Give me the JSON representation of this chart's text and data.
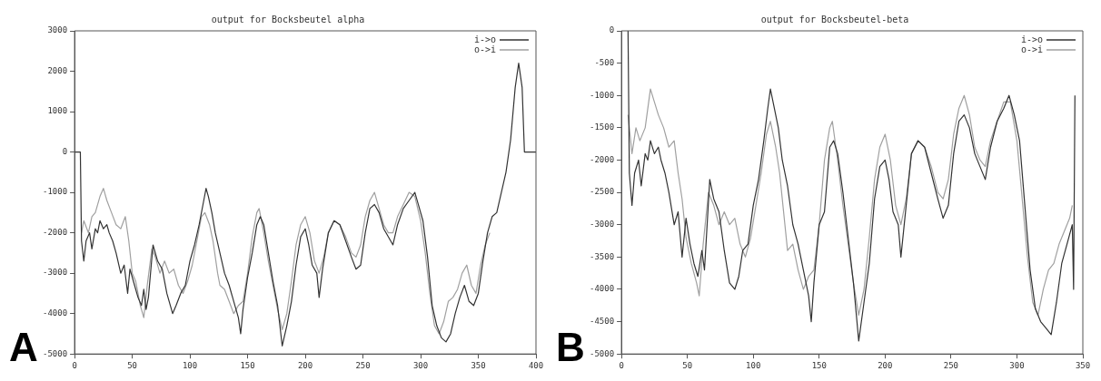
{
  "chart_data": [
    {
      "type": "line",
      "title": "output for Bocksbeutel alpha",
      "annotations": [
        "A"
      ],
      "xlim": [
        0,
        400
      ],
      "xticks": [
        0,
        50,
        100,
        150,
        200,
        250,
        300,
        350,
        400
      ],
      "ylim": [
        -5000,
        3000
      ],
      "yticks": [
        -5000,
        -4000,
        -3000,
        -2000,
        -1000,
        0,
        1000,
        2000,
        3000
      ],
      "grid": false,
      "legend": "top right",
      "marker": "none",
      "line_style": "solid",
      "series": [
        {
          "name": "i->o",
          "color": "#333333",
          "x": [
            0,
            5,
            6,
            8,
            10,
            13,
            15,
            18,
            20,
            22,
            25,
            28,
            30,
            33,
            36,
            40,
            43,
            46,
            48,
            52,
            55,
            58,
            60,
            62,
            64,
            68,
            72,
            76,
            80,
            85,
            88,
            92,
            96,
            100,
            104,
            108,
            112,
            114,
            116,
            119,
            122,
            126,
            130,
            134,
            138,
            142,
            144,
            146,
            150,
            154,
            158,
            161,
            164,
            168,
            172,
            176,
            180,
            184,
            188,
            192,
            196,
            200,
            203,
            206,
            210,
            212,
            215,
            220,
            225,
            230,
            235,
            240,
            244,
            248,
            252,
            256,
            260,
            264,
            268,
            272,
            276,
            280,
            285,
            290,
            295,
            298,
            302,
            306,
            310,
            314,
            318,
            322,
            326,
            330,
            334,
            338,
            342,
            346,
            350,
            354,
            358,
            362,
            366,
            370,
            374,
            378,
            382,
            385,
            388,
            390,
            400
          ],
          "values": [
            0,
            0,
            -2200,
            -2700,
            -2200,
            -2000,
            -2400,
            -1900,
            -2000,
            -1700,
            -1900,
            -1800,
            -2000,
            -2200,
            -2500,
            -3000,
            -2800,
            -3500,
            -2900,
            -3300,
            -3600,
            -3800,
            -3400,
            -3900,
            -3600,
            -2300,
            -2700,
            -2900,
            -3500,
            -4000,
            -3800,
            -3500,
            -3300,
            -2700,
            -2300,
            -1800,
            -1200,
            -900,
            -1100,
            -1500,
            -2000,
            -2500,
            -3000,
            -3300,
            -3700,
            -4100,
            -4500,
            -3900,
            -3100,
            -2500,
            -1800,
            -1600,
            -1800,
            -2500,
            -3200,
            -3800,
            -4800,
            -4300,
            -3700,
            -2800,
            -2100,
            -1900,
            -2300,
            -2800,
            -3000,
            -3600,
            -2900,
            -2000,
            -1700,
            -1800,
            -2200,
            -2600,
            -2900,
            -2800,
            -2000,
            -1400,
            -1300,
            -1500,
            -1900,
            -2100,
            -2300,
            -1800,
            -1400,
            -1200,
            -1000,
            -1300,
            -1700,
            -2600,
            -3800,
            -4300,
            -4600,
            -4700,
            -4500,
            -4000,
            -3600,
            -3300,
            -3700,
            -3800,
            -3500,
            -2700,
            -2000,
            -1600,
            -1500,
            -1000,
            -500,
            300,
            1600,
            2200,
            1600,
            0,
            0
          ]
        },
        {
          "name": "o->i",
          "color": "#a0a0a0",
          "x": [
            6,
            8,
            12,
            15,
            18,
            22,
            25,
            28,
            32,
            36,
            40,
            44,
            47,
            50,
            53,
            57,
            60,
            63,
            67,
            70,
            74,
            78,
            82,
            86,
            90,
            94,
            98,
            102,
            106,
            110,
            113,
            117,
            120,
            124,
            126,
            130,
            134,
            138,
            142,
            146,
            150,
            154,
            158,
            160,
            164,
            168,
            172,
            176,
            180,
            184,
            188,
            192,
            196,
            200,
            204,
            208,
            212,
            216,
            220,
            225,
            230,
            235,
            240,
            244,
            248,
            252,
            256,
            260,
            264,
            268,
            272,
            276,
            280,
            285,
            290,
            295,
            300,
            304,
            308,
            312,
            316,
            320,
            324,
            328,
            332,
            336,
            340,
            344,
            348,
            352,
            356,
            360
          ],
          "values": [
            -2000,
            -1700,
            -2000,
            -1600,
            -1500,
            -1100,
            -900,
            -1200,
            -1500,
            -1800,
            -1900,
            -1600,
            -2200,
            -3000,
            -3200,
            -3800,
            -4100,
            -3300,
            -2400,
            -2600,
            -3000,
            -2700,
            -3000,
            -2900,
            -3300,
            -3500,
            -3200,
            -2800,
            -2200,
            -1600,
            -1500,
            -1800,
            -2200,
            -3000,
            -3300,
            -3400,
            -3700,
            -4000,
            -3800,
            -3700,
            -3000,
            -2100,
            -1500,
            -1400,
            -2000,
            -2700,
            -3300,
            -3900,
            -4400,
            -4000,
            -3200,
            -2300,
            -1800,
            -1600,
            -2000,
            -2700,
            -3000,
            -2600,
            -2000,
            -1700,
            -1800,
            -2100,
            -2500,
            -2600,
            -2300,
            -1600,
            -1200,
            -1000,
            -1400,
            -1800,
            -2000,
            -2000,
            -1600,
            -1300,
            -1000,
            -1100,
            -1700,
            -2500,
            -3500,
            -4300,
            -4500,
            -4200,
            -3700,
            -3600,
            -3400,
            -3000,
            -2800,
            -3300,
            -3500,
            -2800,
            -2300,
            -2000
          ]
        }
      ]
    },
    {
      "type": "line",
      "title": "output for Bocksbeutel-beta",
      "annotations": [
        "B"
      ],
      "xlim": [
        0,
        350
      ],
      "xticks": [
        0,
        50,
        100,
        150,
        200,
        250,
        300,
        350
      ],
      "ylim": [
        -5000,
        0
      ],
      "yticks": [
        -5000,
        -4500,
        -4000,
        -3500,
        -3000,
        -2500,
        -2000,
        -1500,
        -1000,
        -500,
        0
      ],
      "grid": false,
      "legend": "top right",
      "marker": "none",
      "line_style": "solid",
      "series": [
        {
          "name": "i->o",
          "color": "#333333",
          "x": [
            5,
            6,
            8,
            10,
            13,
            15,
            18,
            20,
            22,
            25,
            28,
            30,
            33,
            36,
            40,
            43,
            46,
            49,
            52,
            55,
            58,
            61,
            63,
            67,
            70,
            74,
            78,
            82,
            86,
            89,
            92,
            96,
            100,
            104,
            108,
            111,
            113,
            116,
            119,
            122,
            126,
            130,
            134,
            138,
            142,
            144,
            146,
            150,
            154,
            158,
            161,
            164,
            168,
            172,
            176,
            180,
            184,
            188,
            192,
            196,
            200,
            203,
            206,
            210,
            212,
            215,
            220,
            225,
            230,
            235,
            240,
            244,
            248,
            252,
            256,
            260,
            264,
            268,
            272,
            276,
            280,
            285,
            290,
            294,
            298,
            302,
            306,
            310,
            314,
            318,
            322,
            326,
            330,
            334,
            338,
            342,
            343,
            344
          ],
          "values": [
            0,
            -2200,
            -2700,
            -2200,
            -2000,
            -2400,
            -1900,
            -2000,
            -1700,
            -1900,
            -1800,
            -2000,
            -2200,
            -2500,
            -3000,
            -2800,
            -3500,
            -2900,
            -3300,
            -3600,
            -3800,
            -3400,
            -3700,
            -2300,
            -2600,
            -2800,
            -3400,
            -3900,
            -4000,
            -3800,
            -3400,
            -3300,
            -2700,
            -2300,
            -1700,
            -1200,
            -900,
            -1200,
            -1500,
            -2000,
            -2400,
            -3000,
            -3300,
            -3700,
            -4100,
            -4500,
            -3900,
            -3000,
            -2800,
            -1800,
            -1700,
            -1900,
            -2500,
            -3200,
            -3900,
            -4800,
            -4200,
            -3600,
            -2600,
            -2100,
            -2000,
            -2300,
            -2800,
            -3000,
            -3500,
            -2900,
            -1900,
            -1700,
            -1800,
            -2200,
            -2600,
            -2900,
            -2700,
            -1900,
            -1400,
            -1300,
            -1500,
            -1900,
            -2100,
            -2300,
            -1800,
            -1400,
            -1200,
            -1000,
            -1300,
            -1700,
            -2700,
            -3700,
            -4300,
            -4500,
            -4600,
            -4700,
            -4200,
            -3600,
            -3300,
            -3000,
            -4000,
            -1000
          ]
        },
        {
          "name": "o->i",
          "color": "#a0a0a0",
          "x": [
            5,
            8,
            11,
            14,
            18,
            22,
            25,
            28,
            32,
            36,
            40,
            43,
            46,
            49,
            53,
            57,
            59,
            62,
            66,
            70,
            74,
            78,
            82,
            86,
            90,
            94,
            98,
            102,
            106,
            110,
            113,
            117,
            120,
            124,
            126,
            130,
            134,
            138,
            142,
            146,
            150,
            154,
            158,
            160,
            164,
            168,
            172,
            176,
            180,
            184,
            188,
            192,
            196,
            200,
            204,
            208,
            212,
            216,
            220,
            225,
            230,
            235,
            240,
            244,
            248,
            252,
            256,
            260,
            264,
            268,
            272,
            276,
            280,
            285,
            290,
            295,
            300,
            304,
            308,
            312,
            316,
            320,
            324,
            328,
            332,
            336,
            340,
            342
          ],
          "values": [
            -1300,
            -1900,
            -1500,
            -1700,
            -1500,
            -900,
            -1100,
            -1300,
            -1500,
            -1800,
            -1700,
            -2200,
            -2600,
            -3200,
            -3600,
            -3900,
            -4100,
            -3300,
            -2500,
            -2700,
            -3000,
            -2800,
            -3000,
            -2900,
            -3300,
            -3500,
            -3200,
            -2700,
            -2200,
            -1600,
            -1400,
            -1800,
            -2200,
            -3000,
            -3400,
            -3300,
            -3700,
            -4000,
            -3800,
            -3700,
            -3000,
            -2000,
            -1500,
            -1400,
            -2000,
            -2700,
            -3300,
            -3900,
            -4400,
            -4000,
            -3200,
            -2300,
            -1800,
            -1600,
            -2000,
            -2700,
            -3000,
            -2600,
            -1900,
            -1700,
            -1800,
            -2100,
            -2500,
            -2600,
            -2300,
            -1600,
            -1200,
            -1000,
            -1300,
            -1800,
            -2000,
            -2100,
            -1700,
            -1400,
            -1100,
            -1100,
            -1700,
            -2600,
            -3500,
            -4200,
            -4400,
            -4000,
            -3700,
            -3600,
            -3300,
            -3100,
            -2900,
            -2700
          ]
        }
      ]
    }
  ]
}
